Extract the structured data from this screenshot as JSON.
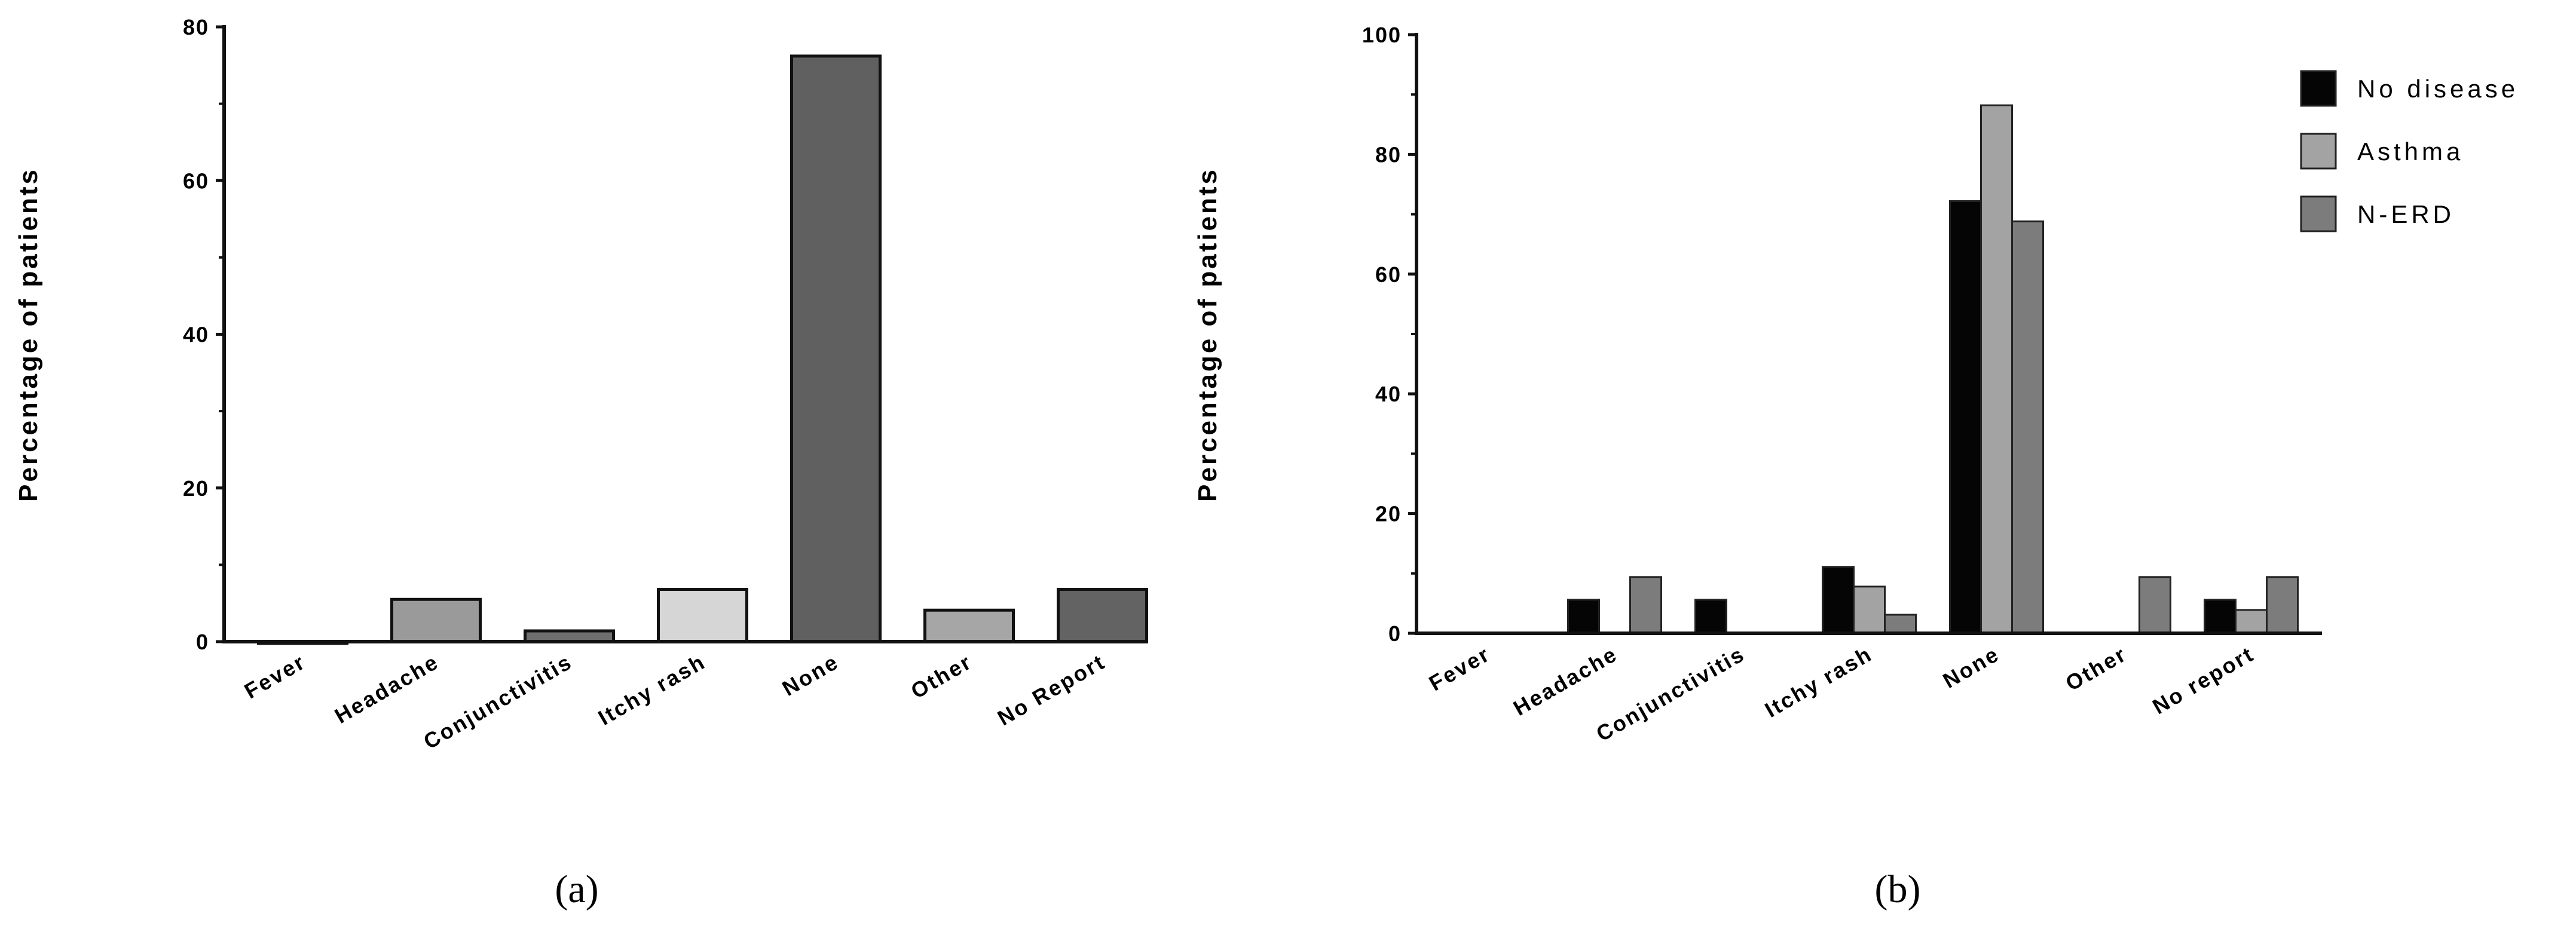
{
  "chart_data": [
    {
      "type": "bar",
      "panel_label": "(a)",
      "categories": [
        "Fever",
        "Headache",
        "Conjunctivitis",
        "Itchy rash",
        "None",
        "Other",
        "No Report"
      ],
      "values": [
        0,
        5.5,
        1.4,
        6.8,
        76.2,
        4.1,
        6.8
      ],
      "colors": [
        "#9a9a9a",
        "#9a9a9a",
        "#6e6e6e",
        "#d6d6d6",
        "#606060",
        "#a6a6a6",
        "#636363"
      ],
      "title": "",
      "xlabel": "",
      "ylabel": "Percentage of patients",
      "ylim": [
        0,
        80
      ],
      "yticks": [
        0,
        20,
        40,
        60,
        80
      ],
      "legend": null
    },
    {
      "type": "bar",
      "panel_label": "(b)",
      "categories": [
        "Fever",
        "Headache",
        "Conjunctivitis",
        "Itchy rash",
        "None",
        "Other",
        "No report"
      ],
      "series": [
        {
          "name": "No disease",
          "color": "#050505",
          "values": [
            0,
            5.6,
            5.6,
            11.1,
            72.2,
            0,
            5.6
          ]
        },
        {
          "name": "Asthma",
          "color": "#a3a3a3",
          "values": [
            0,
            0,
            0,
            7.8,
            88.2,
            0,
            3.9
          ]
        },
        {
          "name": "N-ERD",
          "color": "#7c7c7c",
          "values": [
            0,
            9.4,
            0,
            3.1,
            68.8,
            9.4,
            9.4
          ]
        }
      ],
      "title": "",
      "xlabel": "",
      "ylabel": "Percentage of patients",
      "ylim": [
        0,
        100
      ],
      "yticks": [
        0,
        20,
        40,
        60,
        80,
        100
      ],
      "legend": "top-right"
    }
  ]
}
